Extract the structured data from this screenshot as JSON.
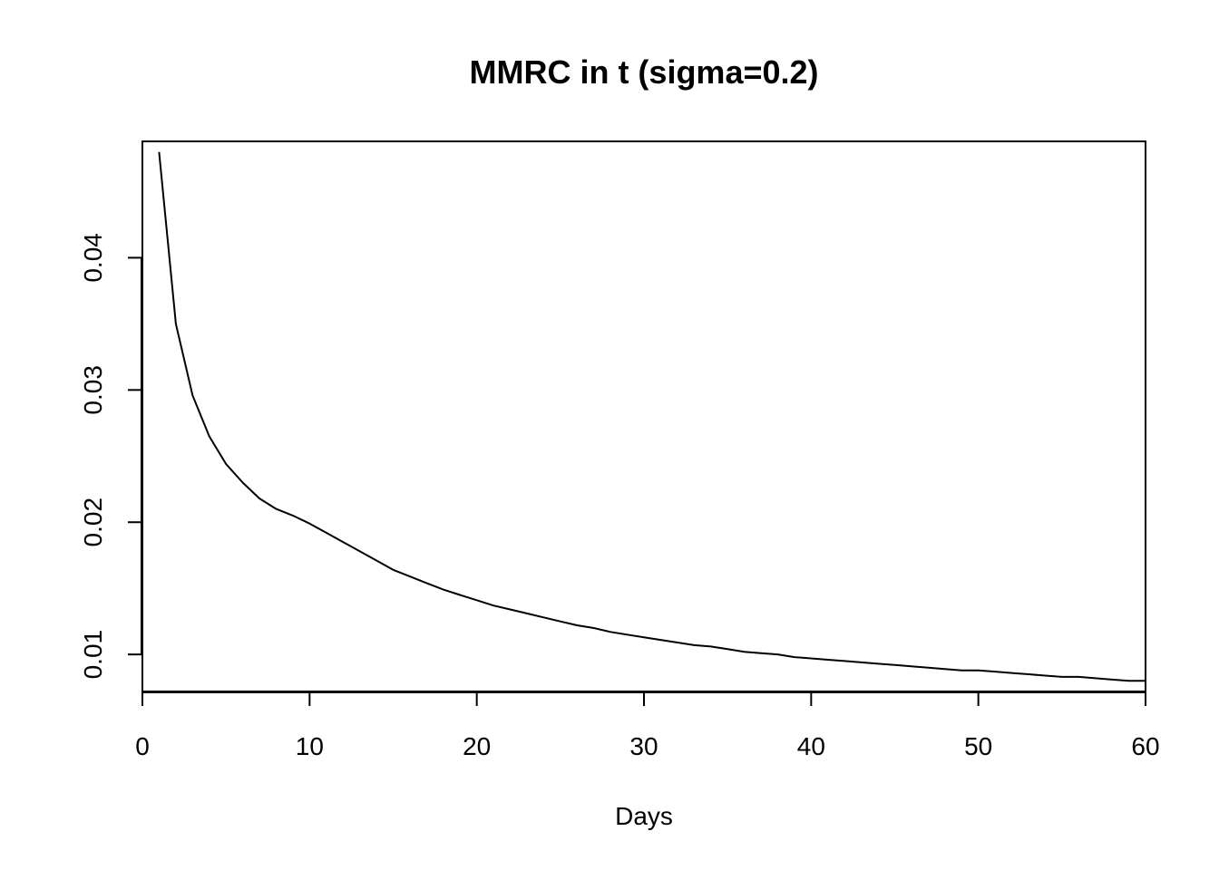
{
  "chart_data": {
    "type": "line",
    "title": "MMRC in t (sigma=0.2)",
    "xlabel": "Days",
    "ylabel": "",
    "xlim": [
      0,
      60
    ],
    "ylim": [
      0.0072,
      0.0488
    ],
    "x_ticks": [
      0,
      10,
      20,
      30,
      40,
      50,
      60
    ],
    "x_tick_labels": [
      "0",
      "10",
      "20",
      "30",
      "40",
      "50",
      "60"
    ],
    "y_ticks": [
      0.01,
      0.02,
      0.03,
      0.04
    ],
    "y_tick_labels": [
      "0.01",
      "0.02",
      "0.03",
      "0.04"
    ],
    "grid": false,
    "legend": "none",
    "line_color": "#000000",
    "series": [
      {
        "x": [
          1,
          2,
          3,
          4,
          5,
          6,
          7,
          8,
          9,
          10,
          11,
          12,
          13,
          14,
          15,
          16,
          17,
          18,
          19,
          20,
          21,
          22,
          23,
          24,
          25,
          26,
          27,
          28,
          29,
          30,
          31,
          32,
          33,
          34,
          35,
          36,
          37,
          38,
          39,
          40,
          41,
          42,
          43,
          44,
          45,
          46,
          47,
          48,
          49,
          50,
          51,
          52,
          53,
          54,
          55,
          56,
          57,
          58,
          59,
          60
        ],
        "values": [
          0.048,
          0.035,
          0.0296,
          0.0265,
          0.0244,
          0.023,
          0.0218,
          0.021,
          0.0205,
          0.0199,
          0.0192,
          0.0185,
          0.0178,
          0.0171,
          0.0164,
          0.0159,
          0.0154,
          0.0149,
          0.0145,
          0.0141,
          0.0137,
          0.0134,
          0.0131,
          0.0128,
          0.0125,
          0.0122,
          0.012,
          0.0117,
          0.0115,
          0.0113,
          0.0111,
          0.0109,
          0.0107,
          0.0106,
          0.0104,
          0.0102,
          0.0101,
          0.01,
          0.0098,
          0.0097,
          0.0096,
          0.0095,
          0.0094,
          0.0093,
          0.0092,
          0.0091,
          0.009,
          0.0089,
          0.0088,
          0.0088,
          0.0087,
          0.0086,
          0.0085,
          0.0084,
          0.0083,
          0.0083,
          0.0082,
          0.0081,
          0.008,
          0.008
        ]
      }
    ]
  }
}
